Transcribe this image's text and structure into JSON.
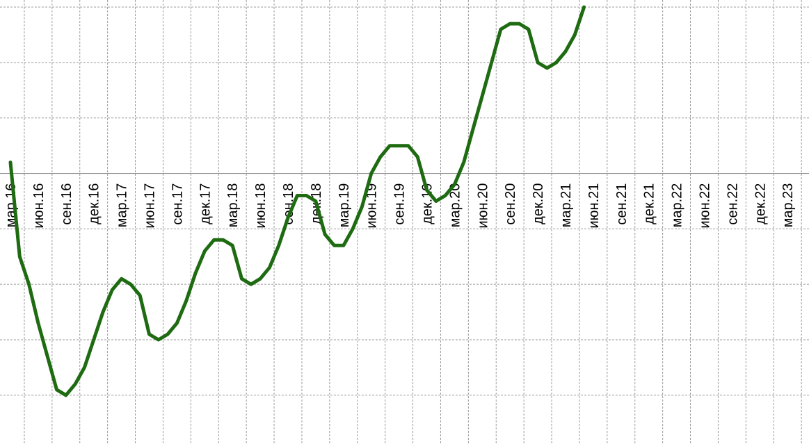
{
  "chart_data": {
    "type": "line",
    "title": "",
    "xlabel": "",
    "ylabel": "",
    "grid": true,
    "legend": "none",
    "ylim": [
      -4.88,
      3.12
    ],
    "zero_line": true,
    "line_color": "#1e6b12",
    "x_tick_labels": [
      "мар.16",
      "июн.16",
      "сен.16",
      "дек.16",
      "мар.17",
      "июн.17",
      "сен.17",
      "дек.17",
      "мар.18",
      "июн.18",
      "сен.18",
      "дек.18",
      "мар.19",
      "июн.19",
      "сен.19",
      "дек.19",
      "мар.20",
      "июн.20",
      "сен.20",
      "дек.20",
      "мар.21",
      "июн.21",
      "сен.21",
      "дек.21",
      "мар.22",
      "июн.22",
      "сен.22",
      "дек.22",
      "мар.23"
    ],
    "series": [
      {
        "values": [
          0.2,
          -1.5,
          -2.0,
          -2.7,
          -3.3,
          -3.9,
          -4.0,
          -3.8,
          -3.5,
          -3.0,
          -2.5,
          -2.1,
          -1.9,
          -2.0,
          -2.2,
          -2.9,
          -3.0,
          -2.9,
          -2.7,
          -2.3,
          -1.8,
          -1.4,
          -1.2,
          -1.2,
          -1.3,
          -1.9,
          -2.0,
          -1.9,
          -1.7,
          -1.3,
          -0.8,
          -0.4,
          -0.4,
          -0.5,
          -1.1,
          -1.3,
          -1.3,
          -1.0,
          -0.6,
          0.0,
          0.3,
          0.5,
          0.5,
          0.5,
          0.3,
          -0.3,
          -0.5,
          -0.4,
          -0.2,
          0.2,
          0.8,
          1.4,
          2.0,
          2.6,
          2.7,
          2.7,
          2.6,
          2.0,
          1.9,
          2.0,
          2.2,
          2.5,
          3.0
        ]
      }
    ]
  }
}
